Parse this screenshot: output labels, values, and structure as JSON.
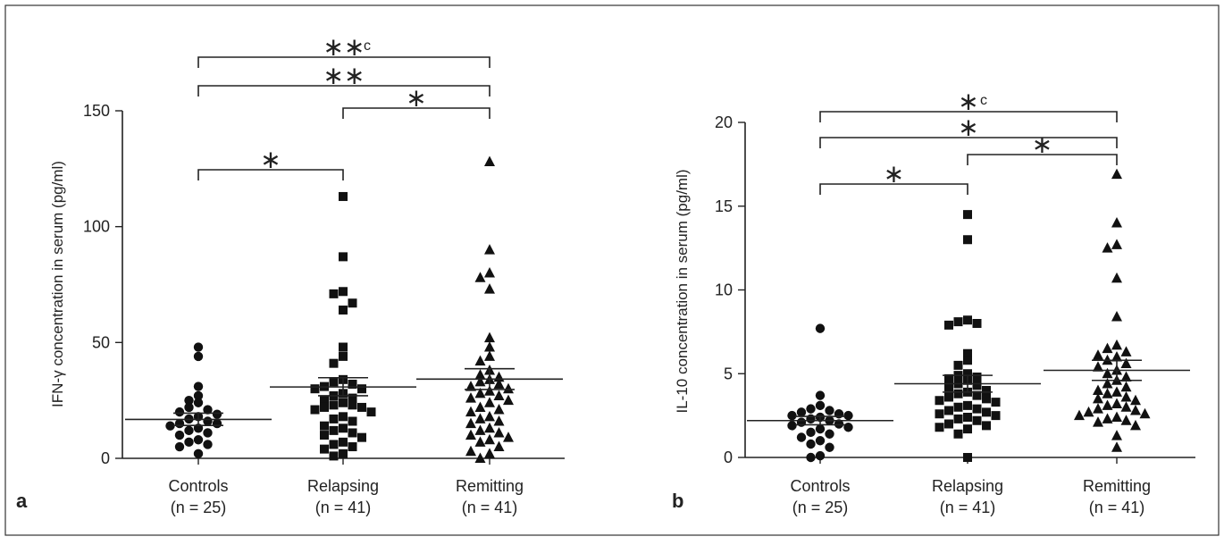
{
  "chart_data": [
    {
      "panel": "a",
      "type": "scatter",
      "ylabel": "IFN-γ concentration in serum (pg/ml)",
      "ylim": [
        0,
        150
      ],
      "yticks": [
        0,
        50,
        100,
        150
      ],
      "categories": [
        {
          "label": "Controls",
          "n_label": "(n = 25)"
        },
        {
          "label": "Relapsing",
          "n_label": "(n = 41)"
        },
        {
          "label": "Remitting",
          "n_label": "(n = 41)"
        }
      ],
      "series": [
        {
          "marker": "circle",
          "mean": 16.8,
          "sem": [
            14.2,
            19.5
          ],
          "values": [
            48,
            44,
            31,
            27,
            25,
            24,
            22,
            21,
            20,
            19,
            18,
            17,
            16,
            15,
            15,
            14,
            13,
            12,
            11,
            10,
            8,
            7,
            6,
            5,
            2
          ]
        },
        {
          "marker": "square",
          "mean": 30.8,
          "sem": [
            27.0,
            34.8
          ],
          "values": [
            113,
            87,
            72,
            71,
            67,
            64,
            48,
            44,
            41,
            34,
            33,
            32,
            31,
            30,
            30,
            28,
            27,
            26,
            25,
            24,
            23,
            23,
            22,
            22,
            21,
            20,
            18,
            17,
            16,
            14,
            13,
            12,
            11,
            10,
            9,
            7,
            6,
            5,
            4,
            2,
            1
          ]
        },
        {
          "marker": "triangle",
          "mean": 34.2,
          "sem": [
            29.7,
            38.7
          ],
          "values": [
            128,
            90,
            80,
            78,
            73,
            52,
            48,
            44,
            42,
            38,
            36,
            35,
            34,
            33,
            32,
            31,
            30,
            29,
            28,
            27,
            26,
            25,
            24,
            22,
            21,
            20,
            18,
            17,
            16,
            15,
            13,
            12,
            11,
            10,
            9,
            8,
            7,
            5,
            3,
            2,
            0
          ]
        }
      ],
      "brackets": [
        {
          "from": 1,
          "to": 2,
          "label": "∗",
          "sup": ""
        },
        {
          "from": 2,
          "to": 3,
          "label": "∗",
          "sup": ""
        },
        {
          "from": 1,
          "to": 3,
          "label": "∗∗",
          "sup": ""
        },
        {
          "from": 1,
          "to": 3,
          "label": "∗∗",
          "sup": "c"
        }
      ]
    },
    {
      "panel": "b",
      "type": "scatter",
      "ylabel": "IL-10 concentration in serum (pg/ml)",
      "ylim": [
        0,
        20
      ],
      "yticks": [
        0,
        5,
        10,
        15,
        20
      ],
      "categories": [
        {
          "label": "Controls",
          "n_label": "(n = 25)"
        },
        {
          "label": "Relapsing",
          "n_label": "(n = 41)"
        },
        {
          "label": "Remitting",
          "n_label": "(n = 41)"
        }
      ],
      "series": [
        {
          "marker": "circle",
          "mean": 2.2,
          "sem": [
            1.95,
            2.45
          ],
          "values": [
            7.7,
            3.7,
            3.1,
            2.9,
            2.8,
            2.7,
            2.6,
            2.5,
            2.5,
            2.4,
            2.3,
            2.2,
            2.1,
            2.0,
            1.9,
            1.8,
            1.7,
            1.5,
            1.4,
            1.2,
            1.0,
            0.8,
            0.6,
            0.1,
            0.0
          ]
        },
        {
          "marker": "square",
          "mean": 4.4,
          "sem": [
            3.9,
            4.9
          ],
          "values": [
            14.5,
            13.0,
            8.2,
            8.1,
            8.0,
            7.9,
            6.2,
            5.8,
            5.5,
            5.0,
            4.9,
            4.8,
            4.7,
            4.6,
            4.4,
            4.3,
            4.2,
            4.0,
            3.9,
            3.8,
            3.7,
            3.6,
            3.5,
            3.4,
            3.3,
            3.1,
            3.0,
            2.9,
            2.8,
            2.7,
            2.6,
            2.5,
            2.4,
            2.3,
            2.2,
            2.0,
            1.9,
            1.8,
            1.7,
            1.4,
            0.0
          ]
        },
        {
          "marker": "triangle",
          "mean": 5.2,
          "sem": [
            4.6,
            5.8
          ],
          "values": [
            16.9,
            14.0,
            12.7,
            12.5,
            10.7,
            8.4,
            6.7,
            6.5,
            6.3,
            6.1,
            6.0,
            5.8,
            5.6,
            5.4,
            5.2,
            5.0,
            4.8,
            4.6,
            4.4,
            4.2,
            4.0,
            3.9,
            3.8,
            3.6,
            3.5,
            3.4,
            3.2,
            3.1,
            3.0,
            2.9,
            2.8,
            2.7,
            2.6,
            2.5,
            2.4,
            2.3,
            2.2,
            2.1,
            1.9,
            1.3,
            0.6
          ]
        }
      ],
      "brackets": [
        {
          "from": 1,
          "to": 2,
          "label": "∗",
          "sup": ""
        },
        {
          "from": 2,
          "to": 3,
          "label": "∗",
          "sup": ""
        },
        {
          "from": 1,
          "to": 3,
          "label": "∗",
          "sup": ""
        },
        {
          "from": 1,
          "to": 3,
          "label": "∗",
          "sup": "c"
        }
      ]
    }
  ]
}
